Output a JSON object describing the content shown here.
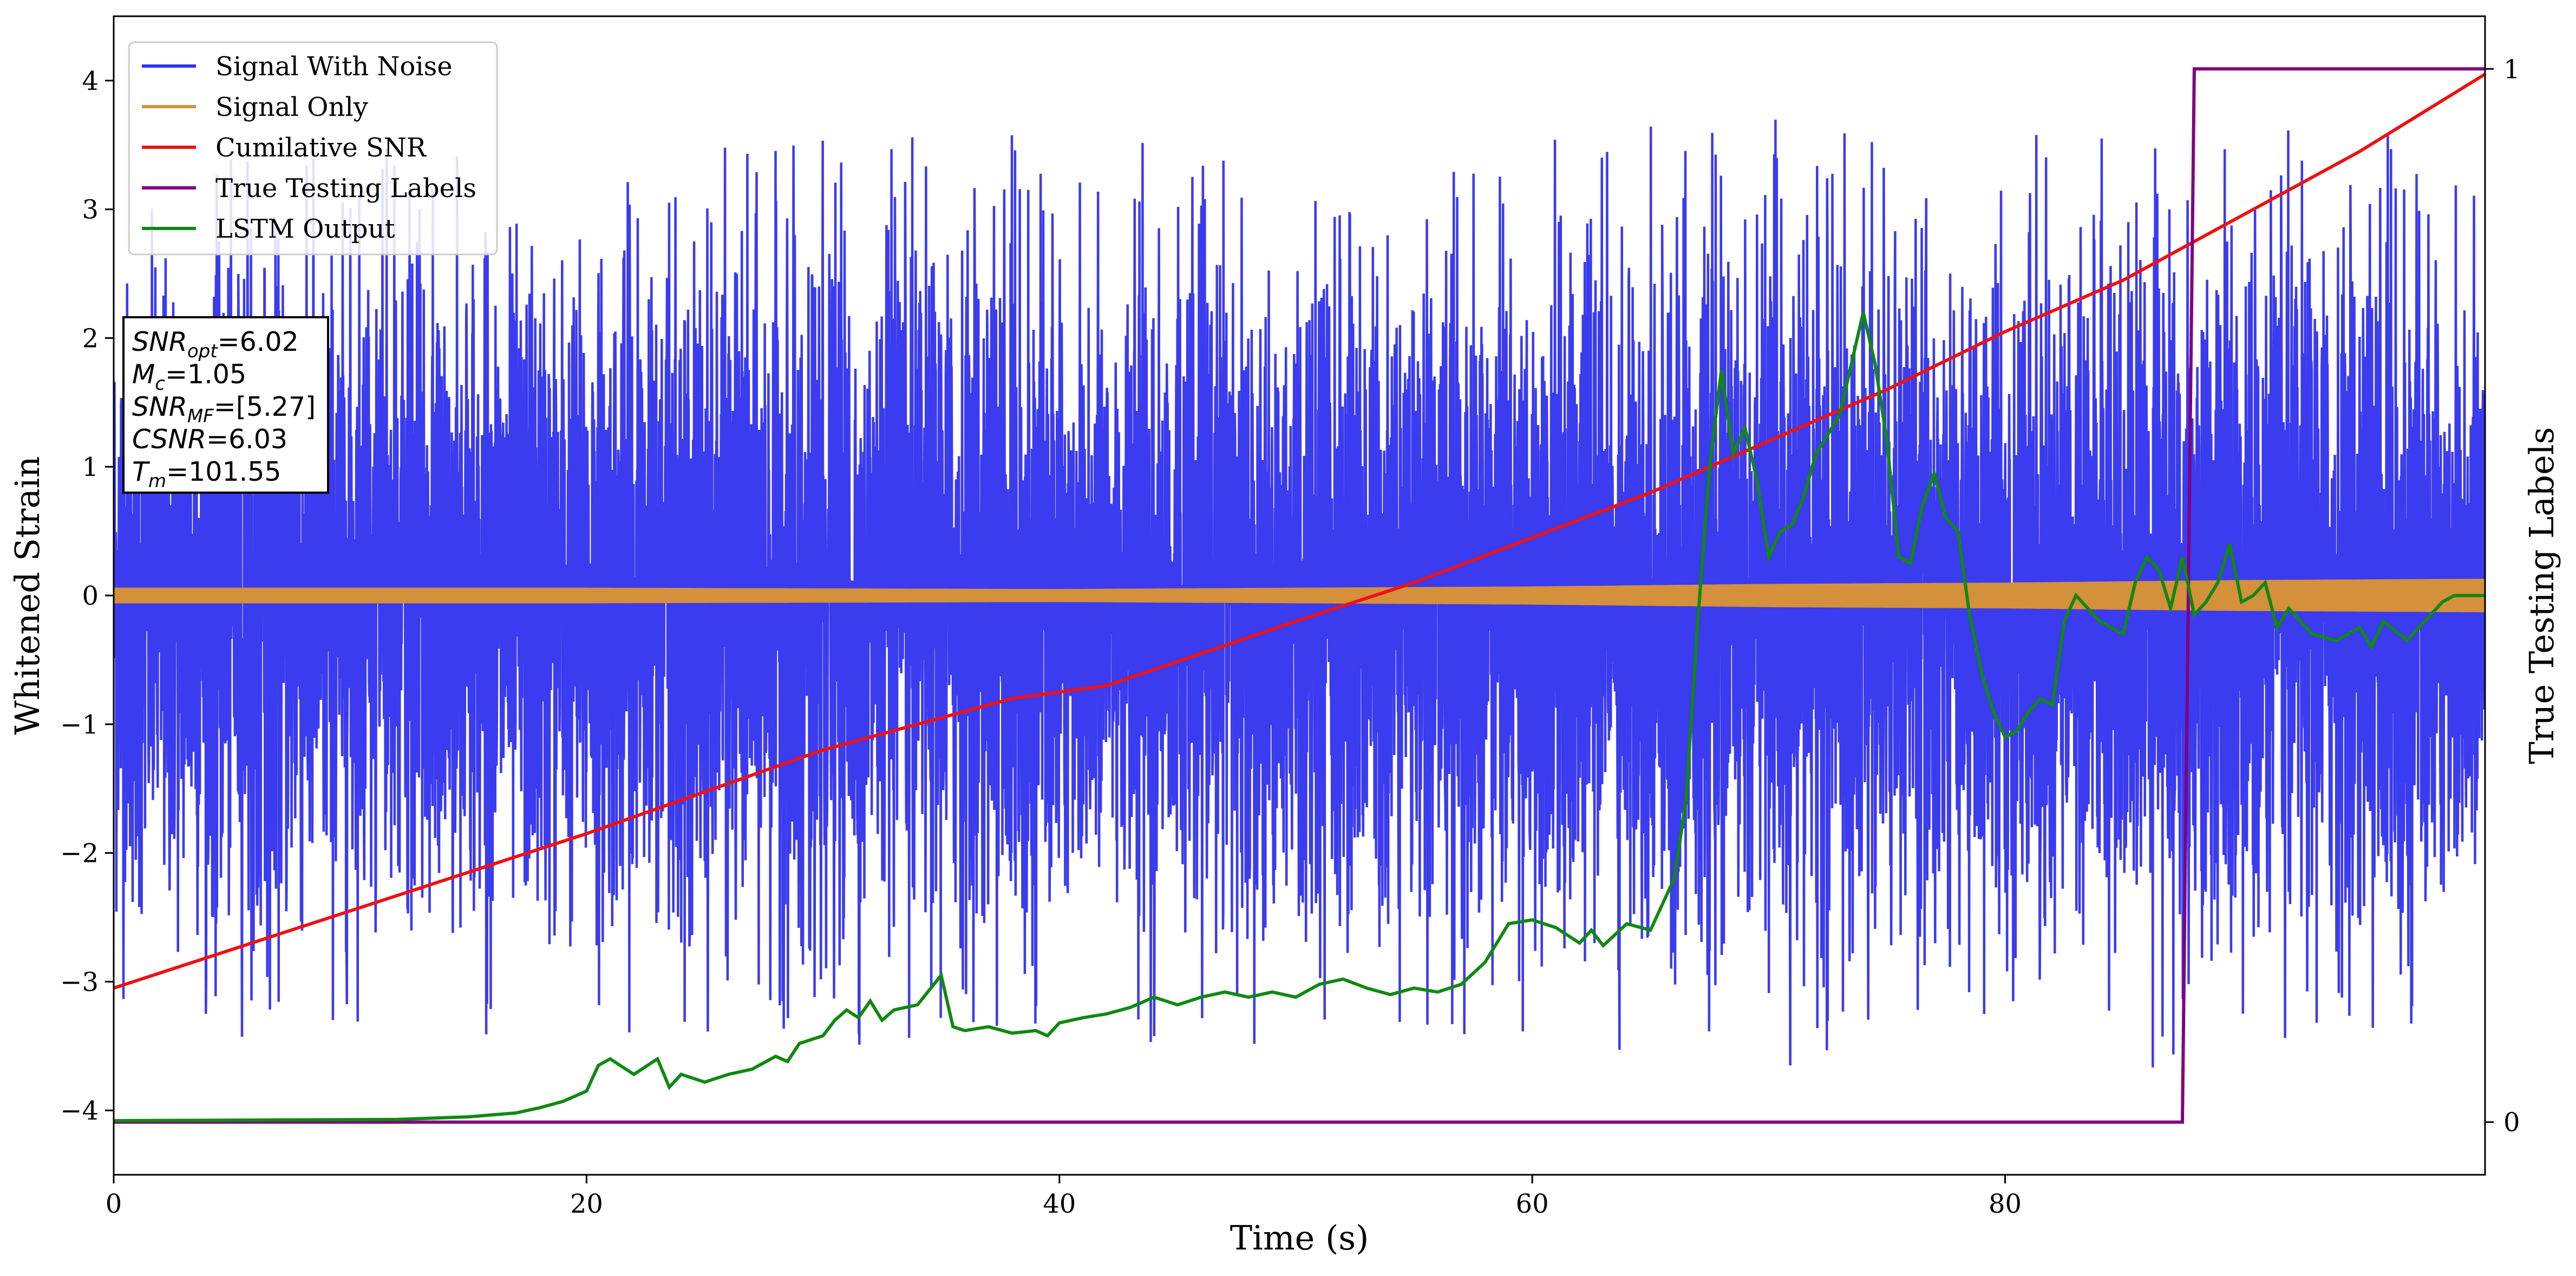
{
  "chart_data": {
    "type": "line",
    "xlabel": "Time (s)",
    "ylabel": "Whitened Strain",
    "y2label": "True Testing Labels",
    "xlim": [
      0,
      100.3
    ],
    "ylim": [
      -4.5,
      4.5
    ],
    "y2lim": [
      -0.05,
      1.05
    ],
    "xticks": [
      0,
      20,
      40,
      60,
      80
    ],
    "yticks": [
      -4,
      -3,
      -2,
      -1,
      0,
      1,
      2,
      3,
      4
    ],
    "y2ticks": [
      0,
      1
    ],
    "grid": false,
    "legend_position": "top-left",
    "colors": {
      "noise": "#3333ee",
      "signal": "#d4903a",
      "csnr": "#ee1111",
      "labels": "#800080",
      "lstm": "#118811"
    },
    "series": [
      {
        "name": "Signal With Noise",
        "axis": "left",
        "color": "#3333ee",
        "envelope": {
          "x": [
            0,
            10,
            20,
            30,
            40,
            50,
            60,
            67,
            70,
            75,
            80,
            90,
            100.3
          ],
          "upper": [
            3.2,
            3.3,
            3.3,
            3.3,
            3.3,
            3.2,
            3.3,
            3.3,
            3.5,
            3.4,
            3.3,
            3.4,
            3.4
          ],
          "lower": [
            -3.0,
            -3.2,
            -3.0,
            -3.4,
            -3.2,
            -3.2,
            -3.3,
            -3.3,
            -3.4,
            -3.2,
            -3.3,
            -3.4,
            -3.0
          ]
        }
      },
      {
        "name": "Signal Only",
        "axis": "left",
        "color": "#d4903a",
        "envelope": {
          "x": [
            0,
            20,
            40,
            60,
            70,
            80,
            90,
            100.3
          ],
          "amplitude": [
            0.06,
            0.06,
            0.05,
            0.07,
            0.09,
            0.1,
            0.12,
            0.13
          ]
        }
      },
      {
        "name": "Cumilative SNR",
        "axis": "left",
        "color": "#ee1111",
        "x": [
          0,
          10,
          20,
          30,
          38,
          42,
          50,
          55,
          60,
          65,
          70,
          75,
          80,
          85,
          90,
          95,
          100.3
        ],
        "values": [
          -3.05,
          -2.45,
          -1.85,
          -1.2,
          -0.8,
          -0.7,
          -0.2,
          0.1,
          0.45,
          0.8,
          1.2,
          1.6,
          2.05,
          2.45,
          2.95,
          3.45,
          4.05
        ]
      },
      {
        "name": "True Testing Labels",
        "axis": "right",
        "color": "#800080",
        "x": [
          0,
          87.5,
          88.0,
          100.3
        ],
        "values": [
          0,
          0,
          1,
          1
        ]
      },
      {
        "name": "LSTM Output",
        "axis": "left",
        "color": "#118811",
        "x": [
          0,
          12,
          15,
          17,
          18,
          19,
          20,
          20.5,
          21,
          22,
          23,
          23.5,
          24,
          25,
          26,
          27,
          28,
          28.5,
          29,
          30,
          30.5,
          31,
          31.5,
          32,
          32.5,
          33,
          34,
          35,
          35.5,
          36,
          37,
          38,
          39,
          39.5,
          40,
          41,
          42,
          43,
          44,
          45,
          46,
          47,
          48,
          49,
          50,
          51,
          52,
          53,
          54,
          55,
          56,
          57,
          58,
          59,
          60,
          61,
          62,
          62.5,
          63,
          64,
          65,
          66,
          66.5,
          67,
          67.5,
          68,
          68.5,
          69,
          69.5,
          70,
          70.5,
          71,
          71.5,
          72,
          73,
          74,
          74.5,
          75,
          75.5,
          76,
          76.5,
          77,
          77.5,
          78,
          78.5,
          79,
          79.5,
          80,
          80.5,
          81,
          81.5,
          82,
          82.5,
          83,
          83.5,
          84,
          85,
          85.5,
          86,
          86.5,
          87,
          87.5,
          88,
          88.5,
          89,
          89.5,
          90,
          90.5,
          91,
          91.5,
          92,
          92.5,
          93,
          94,
          95,
          95.5,
          96,
          97,
          98,
          98.5,
          99,
          100.3
        ],
        "values": [
          -4.08,
          -4.07,
          -4.05,
          -4.02,
          -3.98,
          -3.93,
          -3.85,
          -3.65,
          -3.6,
          -3.72,
          -3.6,
          -3.82,
          -3.72,
          -3.78,
          -3.72,
          -3.68,
          -3.58,
          -3.62,
          -3.48,
          -3.42,
          -3.3,
          -3.22,
          -3.28,
          -3.15,
          -3.3,
          -3.22,
          -3.18,
          -2.95,
          -3.35,
          -3.38,
          -3.35,
          -3.4,
          -3.38,
          -3.42,
          -3.32,
          -3.28,
          -3.25,
          -3.2,
          -3.12,
          -3.18,
          -3.12,
          -3.08,
          -3.12,
          -3.08,
          -3.12,
          -3.02,
          -2.98,
          -3.05,
          -3.1,
          -3.05,
          -3.08,
          -3.02,
          -2.85,
          -2.55,
          -2.52,
          -2.58,
          -2.7,
          -2.6,
          -2.72,
          -2.55,
          -2.6,
          -2.2,
          -1.6,
          -0.2,
          1.0,
          1.75,
          1.1,
          1.3,
          0.9,
          0.3,
          0.5,
          0.55,
          0.78,
          1.1,
          1.4,
          2.2,
          1.8,
          1.2,
          0.3,
          0.25,
          0.7,
          0.95,
          0.6,
          0.5,
          -0.15,
          -0.6,
          -0.9,
          -1.1,
          -1.05,
          -0.9,
          -0.8,
          -0.85,
          -0.2,
          0.0,
          -0.1,
          -0.2,
          -0.3,
          0.1,
          0.3,
          0.2,
          -0.1,
          0.3,
          -0.15,
          -0.05,
          0.1,
          0.4,
          -0.05,
          0.0,
          0.1,
          -0.25,
          -0.1,
          -0.2,
          -0.3,
          -0.35,
          -0.25,
          -0.4,
          -0.2,
          -0.35,
          -0.15,
          -0.05,
          0.0,
          0.0
        ]
      }
    ],
    "info_box": [
      {
        "sym": "SNR",
        "sub": "opt",
        "value": "=6.02"
      },
      {
        "sym": "M",
        "sub": "c",
        "value": "=1.05"
      },
      {
        "sym": "SNR",
        "sub": "MF",
        "value": "=[5.27]"
      },
      {
        "sym": "CSNR",
        "sub": "",
        "value": "=6.03"
      },
      {
        "sym": "T",
        "sub": "m",
        "value": "=101.55"
      }
    ]
  }
}
